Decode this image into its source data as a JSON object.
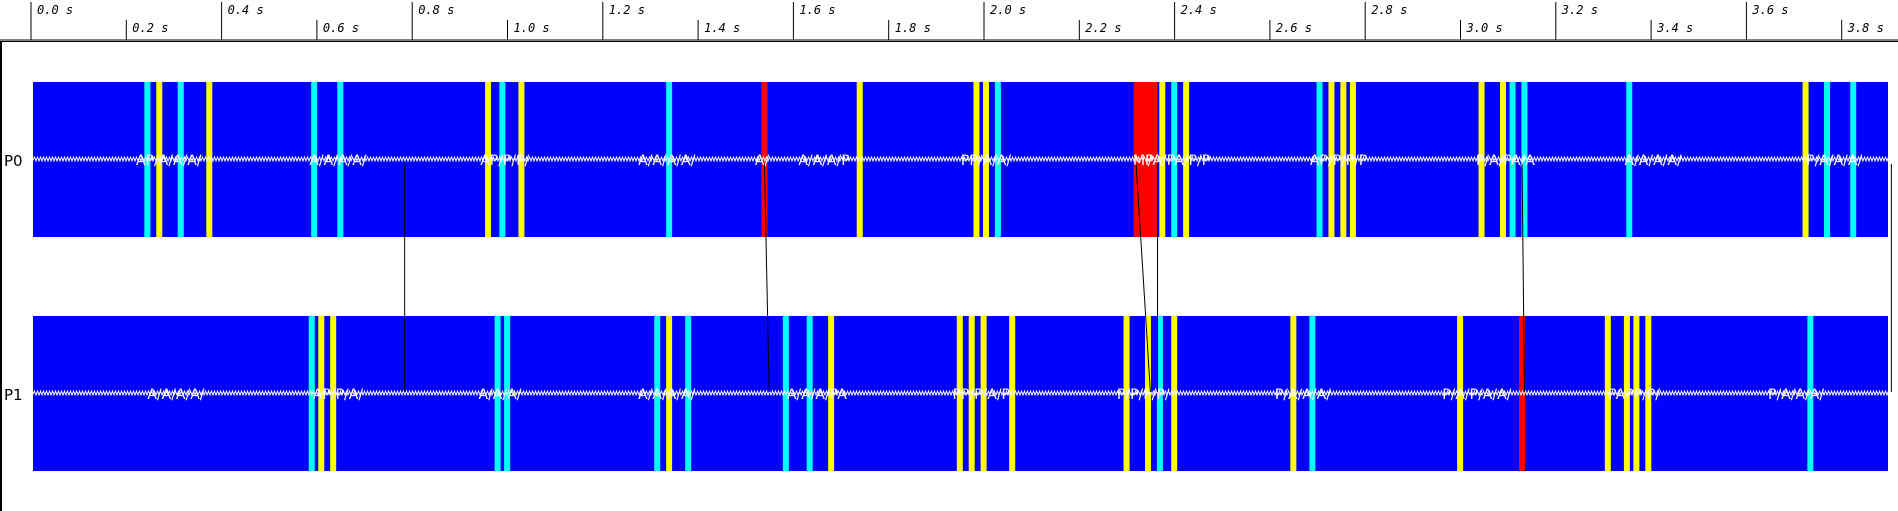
{
  "ruler": {
    "unit": "s",
    "major_ticks": [
      "0.0 s",
      "0.4 s",
      "0.8 s",
      "1.2 s",
      "1.6 s",
      "2.0 s",
      "2.4 s",
      "2.8 s",
      "3.2 s",
      "3.6 s"
    ],
    "minor_ticks": [
      "0.2 s",
      "0.6 s",
      "1.0 s",
      "1.4 s",
      "1.8 s",
      "2.2 s",
      "2.6 s",
      "3.0 s",
      "3.4 s",
      "3.8 s"
    ]
  },
  "colors": {
    "idle": "#0000ff",
    "event_cyan": "#00ffff",
    "event_yellow": "#ffff00",
    "event_red": "#ff0000",
    "message_line": "#000000"
  },
  "time_range": [
    0.0,
    3.9
  ],
  "processes": [
    {
      "name": "P0",
      "events": [
        {
          "t": 0.24,
          "color": "cyan"
        },
        {
          "t": 0.265,
          "color": "yellow"
        },
        {
          "t": 0.31,
          "color": "cyan"
        },
        {
          "t": 0.37,
          "color": "yellow"
        },
        {
          "t": 0.59,
          "color": "cyan"
        },
        {
          "t": 0.645,
          "color": "cyan"
        },
        {
          "t": 0.955,
          "color": "yellow"
        },
        {
          "t": 0.985,
          "color": "cyan"
        },
        {
          "t": 1.025,
          "color": "yellow"
        },
        {
          "t": 1.335,
          "color": "cyan"
        },
        {
          "t": 1.535,
          "color": "red"
        },
        {
          "t": 1.735,
          "color": "yellow"
        },
        {
          "t": 1.98,
          "color": "yellow"
        },
        {
          "t": 2.0,
          "color": "yellow"
        },
        {
          "t": 2.025,
          "color": "cyan"
        },
        {
          "t": 2.31,
          "color": "red",
          "w": 0.05
        },
        {
          "t": 2.37,
          "color": "yellow"
        },
        {
          "t": 2.395,
          "color": "cyan"
        },
        {
          "t": 2.42,
          "color": "yellow"
        },
        {
          "t": 2.7,
          "color": "cyan"
        },
        {
          "t": 2.725,
          "color": "yellow"
        },
        {
          "t": 2.75,
          "color": "yellow"
        },
        {
          "t": 2.77,
          "color": "yellow"
        },
        {
          "t": 3.04,
          "color": "yellow"
        },
        {
          "t": 3.085,
          "color": "yellow"
        },
        {
          "t": 3.105,
          "color": "cyan"
        },
        {
          "t": 3.13,
          "color": "cyan"
        },
        {
          "t": 3.35,
          "color": "cyan"
        },
        {
          "t": 3.72,
          "color": "yellow"
        },
        {
          "t": 3.765,
          "color": "cyan"
        },
        {
          "t": 3.82,
          "color": "cyan"
        }
      ],
      "labels": [
        {
          "t": 0.285,
          "text": "AP/A/A/A/"
        },
        {
          "t": 0.64,
          "text": "A/A/A/A/"
        },
        {
          "t": 0.99,
          "text": "AP/P/P/"
        },
        {
          "t": 1.33,
          "text": "A/A/A/A/"
        },
        {
          "t": 1.53,
          "text": "A/"
        },
        {
          "t": 1.66,
          "text": "A/A/A/P"
        },
        {
          "t": 2.0,
          "text": "PP/A/A/"
        },
        {
          "t": 2.33,
          "text": "MP"
        },
        {
          "t": 2.405,
          "text": "/A/PA/P/P"
        },
        {
          "t": 2.74,
          "text": "AP/P/P/P"
        },
        {
          "t": 3.09,
          "text": "P/A/PA/A"
        },
        {
          "t": 3.4,
          "text": "A/A/A/A/"
        },
        {
          "t": 3.78,
          "text": "P/A/A/A/"
        }
      ]
    },
    {
      "name": "P1",
      "events": [
        {
          "t": 0.585,
          "color": "cyan"
        },
        {
          "t": 0.605,
          "color": "yellow"
        },
        {
          "t": 0.63,
          "color": "yellow"
        },
        {
          "t": 0.975,
          "color": "cyan"
        },
        {
          "t": 0.995,
          "color": "cyan"
        },
        {
          "t": 1.31,
          "color": "cyan"
        },
        {
          "t": 1.335,
          "color": "yellow"
        },
        {
          "t": 1.375,
          "color": "cyan"
        },
        {
          "t": 1.58,
          "color": "cyan"
        },
        {
          "t": 1.63,
          "color": "cyan"
        },
        {
          "t": 1.675,
          "color": "yellow"
        },
        {
          "t": 1.945,
          "color": "yellow"
        },
        {
          "t": 1.97,
          "color": "yellow"
        },
        {
          "t": 1.995,
          "color": "yellow"
        },
        {
          "t": 2.055,
          "color": "yellow"
        },
        {
          "t": 2.295,
          "color": "yellow"
        },
        {
          "t": 2.34,
          "color": "yellow"
        },
        {
          "t": 2.365,
          "color": "cyan"
        },
        {
          "t": 2.395,
          "color": "yellow"
        },
        {
          "t": 2.645,
          "color": "yellow"
        },
        {
          "t": 2.685,
          "color": "cyan"
        },
        {
          "t": 2.995,
          "color": "yellow"
        },
        {
          "t": 3.125,
          "color": "red"
        },
        {
          "t": 3.305,
          "color": "yellow"
        },
        {
          "t": 3.345,
          "color": "yellow"
        },
        {
          "t": 3.365,
          "color": "yellow"
        },
        {
          "t": 3.39,
          "color": "yellow"
        },
        {
          "t": 3.73,
          "color": "cyan"
        }
      ],
      "labels": [
        {
          "t": 0.3,
          "text": "A/A/A/A/"
        },
        {
          "t": 0.64,
          "text": "AP/P/A/"
        },
        {
          "t": 0.98,
          "text": "A/A/A/"
        },
        {
          "t": 1.33,
          "text": "A/A/A/A/"
        },
        {
          "t": 1.645,
          "text": "A/A/A/PA"
        },
        {
          "t": 1.99,
          "text": "PP/P/A/P"
        },
        {
          "t": 2.33,
          "text": "P/P/P/P/"
        },
        {
          "t": 2.665,
          "text": "P/A/A/A/"
        },
        {
          "t": 3.03,
          "text": "P/A/P/A/A/"
        },
        {
          "t": 3.36,
          "text": "PAPP/P/"
        },
        {
          "t": 3.7,
          "text": "P/A/A/A/"
        }
      ]
    }
  ],
  "messages": [
    {
      "from": "P0",
      "from_t": 0.78,
      "to": "P1",
      "to_t": 0.78
    },
    {
      "from": "P0",
      "from_t": 1.535,
      "to": "P1",
      "to_t": 1.545
    },
    {
      "from": "P0",
      "from_t": 2.315,
      "to": "P1",
      "to_t": 2.345
    },
    {
      "from": "P0",
      "from_t": 2.36,
      "to": "P1",
      "to_t": 2.36
    },
    {
      "from": "P0",
      "from_t": 3.125,
      "to": "P1",
      "to_t": 3.13
    },
    {
      "from": "P0",
      "from_t": 3.9,
      "to": "P1",
      "to_t": 3.9
    }
  ]
}
